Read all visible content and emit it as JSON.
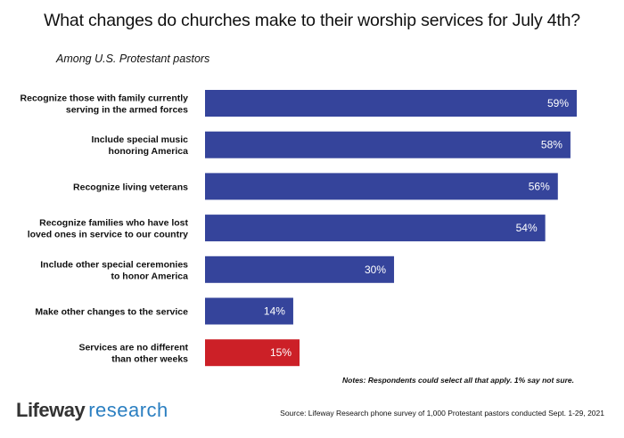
{
  "header": {
    "title": "What changes do churches make to their worship services for July 4th?",
    "subtitle": "Among U.S. Protestant pastors"
  },
  "footer": {
    "notes": "Notes: Respondents could select all that apply. 1% say not sure.",
    "logo_brand": "Lifeway",
    "logo_research": "research",
    "source": "Source:  Lifeway Research phone survey of 1,000 Protestant pastors conducted Sept. 1-29, 2021"
  },
  "colors": {
    "primary_bar": "#35449b",
    "highlight_bar": "#cc2027",
    "logo_blue": "#2b7fc1"
  },
  "chart_data": {
    "type": "bar",
    "orientation": "horizontal",
    "title": "What changes do churches make to their worship services for July 4th?",
    "subtitle": "Among U.S. Protestant pastors",
    "xlabel": "",
    "ylabel": "",
    "unit": "%",
    "xlim": [
      0,
      60
    ],
    "grid": false,
    "legend": "none",
    "categories": [
      [
        "Recognize those with family currently",
        "serving in the armed forces"
      ],
      [
        "Include special music",
        "honoring America"
      ],
      [
        "Recognize living veterans"
      ],
      [
        "Recognize families who have lost",
        "loved ones in service to our country"
      ],
      [
        "Include other special ceremonies",
        "to honor America"
      ],
      [
        "Make other changes to the service"
      ],
      [
        "Services are no different",
        "than other weeks"
      ]
    ],
    "values": [
      59,
      58,
      56,
      54,
      30,
      14,
      15
    ],
    "labels": [
      "59%",
      "58%",
      "56%",
      "54%",
      "30%",
      "14%",
      "15%"
    ],
    "highlight": [
      false,
      false,
      false,
      false,
      false,
      false,
      true
    ]
  }
}
